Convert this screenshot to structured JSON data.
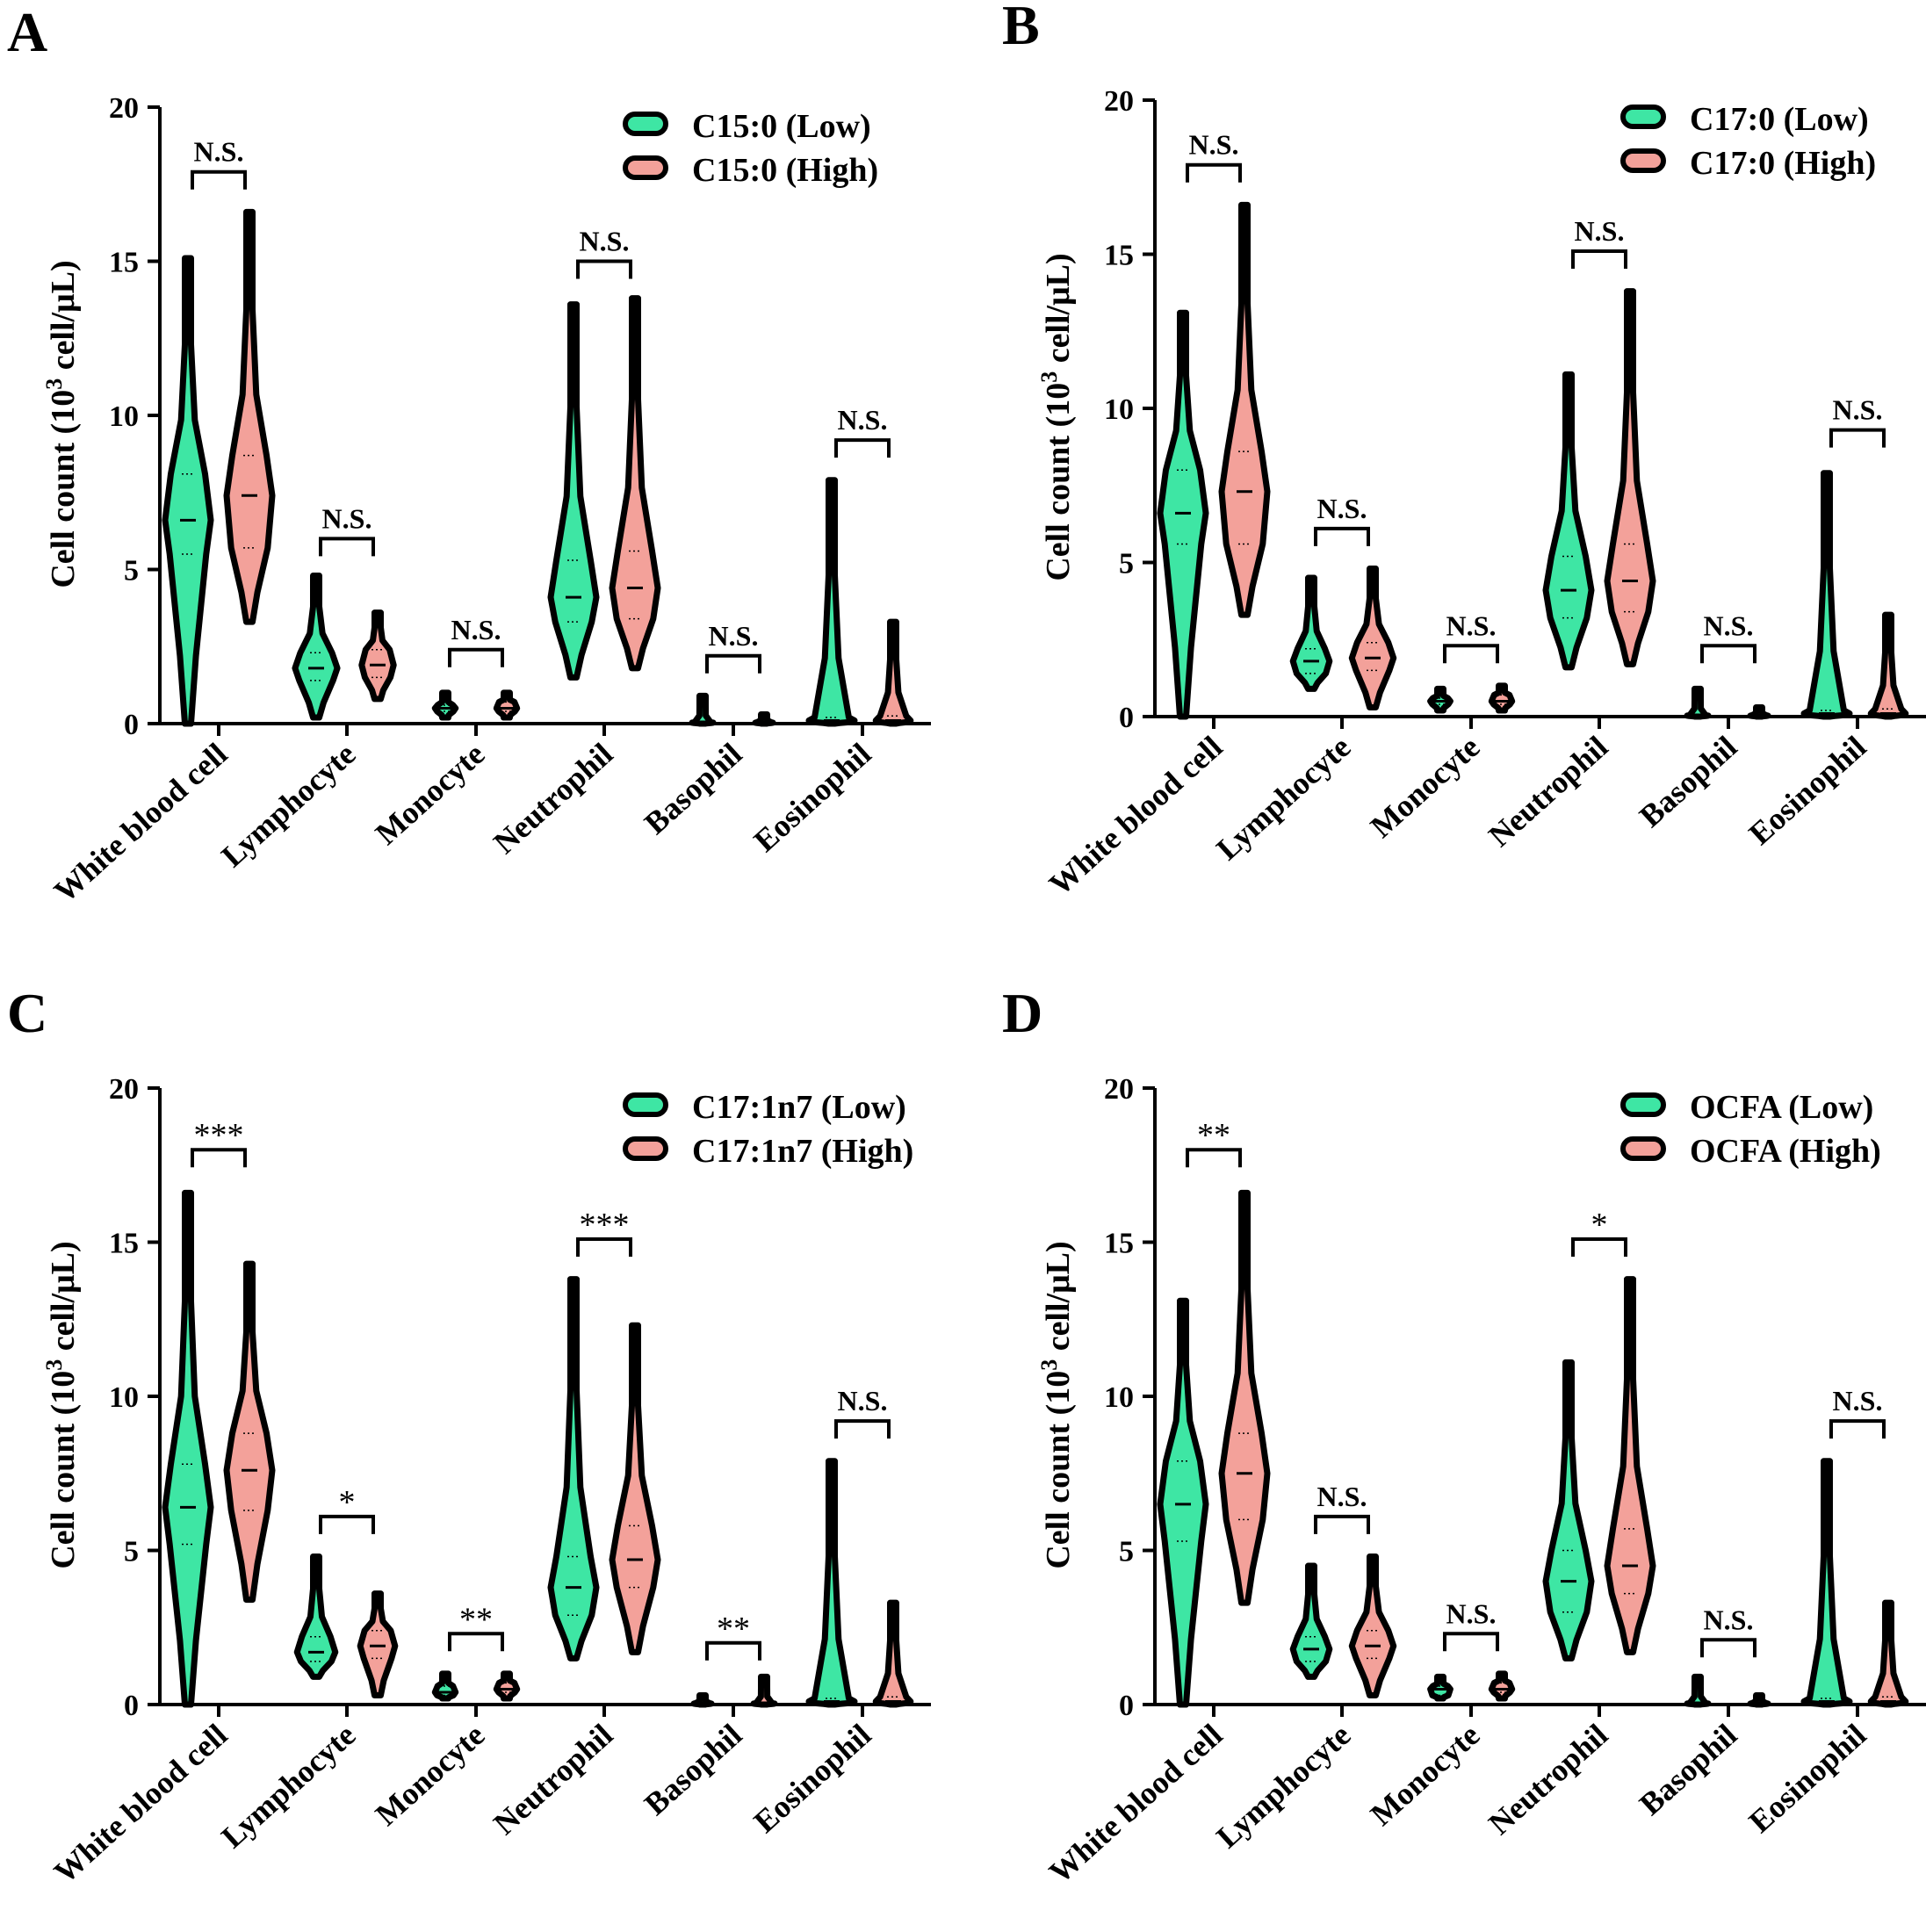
{
  "colors": {
    "low": "#3ee6a4",
    "high": "#f3a19a",
    "stroke": "#000000"
  },
  "chart_data": [
    {
      "type": "violin",
      "panel_label": "A",
      "ylabel": "Cell count (10",
      "ylabel_sup": "3",
      "ylabel_tail": " cell/μL)",
      "ylim": [
        0,
        20
      ],
      "yticks": [
        "0",
        "5",
        "10",
        "15",
        "20"
      ],
      "categories": [
        "White blood cell",
        "Lymphocyte",
        "Monocyte",
        "Neutrophil",
        "Basophil",
        "Eosinophil"
      ],
      "legend": [
        "C15:0 (Low)",
        "C15:0 (High)"
      ],
      "series": [
        {
          "name": "C15:0 (Low)",
          "min": [
            0.0,
            0.2,
            0.2,
            1.5,
            0.0,
            0.0
          ],
          "q1": [
            5.5,
            1.4,
            0.4,
            3.3,
            0.02,
            0.05
          ],
          "median": [
            6.6,
            1.8,
            0.5,
            4.1,
            0.03,
            0.1
          ],
          "q3": [
            8.1,
            2.3,
            0.6,
            5.3,
            0.05,
            0.2
          ],
          "max": [
            15.1,
            4.8,
            1.0,
            13.6,
            0.9,
            7.9
          ]
        },
        {
          "name": "C15:0 (High)",
          "min": [
            3.3,
            0.8,
            0.2,
            1.8,
            0.0,
            0.0
          ],
          "q1": [
            5.7,
            1.5,
            0.4,
            3.4,
            0.02,
            0.05
          ],
          "median": [
            7.4,
            1.9,
            0.5,
            4.4,
            0.03,
            0.1
          ],
          "q3": [
            8.7,
            2.4,
            0.7,
            5.6,
            0.05,
            0.25
          ],
          "max": [
            16.6,
            3.6,
            1.0,
            13.8,
            0.3,
            3.3
          ]
        }
      ],
      "annotations": [
        "N.S.",
        "N.S.",
        "N.S.",
        "N.S.",
        "N.S.",
        "N.S."
      ],
      "annotation_levels": [
        17.9,
        6.0,
        2.4,
        15.0,
        2.2,
        9.2
      ]
    },
    {
      "type": "violin",
      "panel_label": "B",
      "ylabel": "Cell count (10",
      "ylabel_sup": "3",
      "ylabel_tail": " cell/μL)",
      "ylim": [
        0,
        20
      ],
      "yticks": [
        "0",
        "5",
        "10",
        "15",
        "20"
      ],
      "categories": [
        "White blood cell",
        "Lymphocyte",
        "Monocyte",
        "Neutrophil",
        "Basophil",
        "Eosinophil"
      ],
      "legend": [
        "C17:0 (Low)",
        "C17:0 (High)"
      ],
      "series": [
        {
          "name": "C17:0 (Low)",
          "min": [
            0.0,
            0.9,
            0.2,
            1.6,
            0.0,
            0.0
          ],
          "q1": [
            5.6,
            1.4,
            0.4,
            3.2,
            0.02,
            0.05
          ],
          "median": [
            6.6,
            1.8,
            0.5,
            4.1,
            0.03,
            0.1
          ],
          "q3": [
            8.0,
            2.2,
            0.6,
            5.2,
            0.05,
            0.2
          ],
          "max": [
            13.1,
            4.5,
            0.9,
            11.1,
            0.9,
            7.9
          ]
        },
        {
          "name": "C17:0 (High)",
          "min": [
            3.3,
            0.3,
            0.2,
            1.7,
            0.0,
            0.0
          ],
          "q1": [
            5.6,
            1.5,
            0.4,
            3.4,
            0.02,
            0.05
          ],
          "median": [
            7.3,
            1.9,
            0.5,
            4.4,
            0.03,
            0.1
          ],
          "q3": [
            8.6,
            2.4,
            0.7,
            5.6,
            0.05,
            0.25
          ],
          "max": [
            16.6,
            4.8,
            1.0,
            13.8,
            0.3,
            3.3
          ]
        }
      ],
      "annotations": [
        "N.S.",
        "N.S.",
        "N.S.",
        "N.S.",
        "N.S.",
        "N.S."
      ],
      "annotation_levels": [
        17.9,
        6.1,
        2.3,
        15.1,
        2.3,
        9.3
      ]
    },
    {
      "type": "violin",
      "panel_label": "C",
      "ylabel": "Cell count (10",
      "ylabel_sup": "3",
      "ylabel_tail": " cell/μL)",
      "ylim": [
        0,
        20
      ],
      "yticks": [
        "0",
        "5",
        "10",
        "15",
        "20"
      ],
      "categories": [
        "White blood cell",
        "Lymphocyte",
        "Monocyte",
        "Neutrophil",
        "Basophil",
        "Eosinophil"
      ],
      "legend": [
        "C17:1n7 (Low)",
        "C17:1n7 (High)"
      ],
      "series": [
        {
          "name": "C17:1n7 (Low)",
          "min": [
            0.0,
            0.9,
            0.2,
            1.5,
            0.0,
            0.0
          ],
          "q1": [
            5.2,
            1.4,
            0.3,
            2.9,
            0.02,
            0.05
          ],
          "median": [
            6.4,
            1.7,
            0.4,
            3.8,
            0.03,
            0.1
          ],
          "q3": [
            7.8,
            2.2,
            0.6,
            4.8,
            0.05,
            0.2
          ],
          "max": [
            16.6,
            4.8,
            1.0,
            13.8,
            0.3,
            7.9
          ]
        },
        {
          "name": "C17:1n7 (High)",
          "min": [
            3.4,
            0.3,
            0.2,
            1.7,
            0.0,
            0.0
          ],
          "q1": [
            6.3,
            1.5,
            0.4,
            3.8,
            0.02,
            0.05
          ],
          "median": [
            7.6,
            1.9,
            0.5,
            4.7,
            0.03,
            0.1
          ],
          "q3": [
            8.8,
            2.4,
            0.7,
            5.8,
            0.05,
            0.25
          ],
          "max": [
            14.3,
            3.6,
            1.0,
            12.3,
            0.9,
            3.3
          ]
        }
      ],
      "annotations": [
        "***",
        "*",
        "**",
        "***",
        "**",
        "N.S."
      ],
      "annotation_levels": [
        18.0,
        6.1,
        2.3,
        15.1,
        2.0,
        9.2
      ]
    },
    {
      "type": "violin",
      "panel_label": "D",
      "ylabel": "Cell count (10",
      "ylabel_sup": "3",
      "ylabel_tail": " cell/μL)",
      "ylim": [
        0,
        20
      ],
      "yticks": [
        "0",
        "5",
        "10",
        "15",
        "20"
      ],
      "categories": [
        "White blood cell",
        "Lymphocyte",
        "Monocyte",
        "Neutrophil",
        "Basophil",
        "Eosinophil"
      ],
      "legend": [
        "OCFA (Low)",
        "OCFA (High)"
      ],
      "series": [
        {
          "name": "OCFA (Low)",
          "min": [
            0.0,
            0.9,
            0.2,
            1.5,
            0.0,
            0.0
          ],
          "q1": [
            5.3,
            1.4,
            0.3,
            3.0,
            0.02,
            0.05
          ],
          "median": [
            6.5,
            1.8,
            0.5,
            4.0,
            0.03,
            0.1
          ],
          "q3": [
            7.9,
            2.2,
            0.6,
            5.0,
            0.05,
            0.2
          ],
          "max": [
            13.1,
            4.5,
            0.9,
            11.1,
            0.9,
            7.9
          ]
        },
        {
          "name": "OCFA (High)",
          "min": [
            3.3,
            0.3,
            0.2,
            1.7,
            0.0,
            0.0
          ],
          "q1": [
            6.0,
            1.5,
            0.4,
            3.6,
            0.02,
            0.05
          ],
          "median": [
            7.5,
            1.9,
            0.5,
            4.5,
            0.03,
            0.1
          ],
          "q3": [
            8.8,
            2.4,
            0.7,
            5.7,
            0.05,
            0.25
          ],
          "max": [
            16.6,
            4.8,
            1.0,
            13.8,
            0.3,
            3.3
          ]
        }
      ],
      "annotations": [
        "**",
        "N.S.",
        "N.S.",
        "*",
        "N.S.",
        "N.S."
      ],
      "annotation_levels": [
        18.0,
        6.1,
        2.3,
        15.1,
        2.1,
        9.2
      ]
    }
  ]
}
